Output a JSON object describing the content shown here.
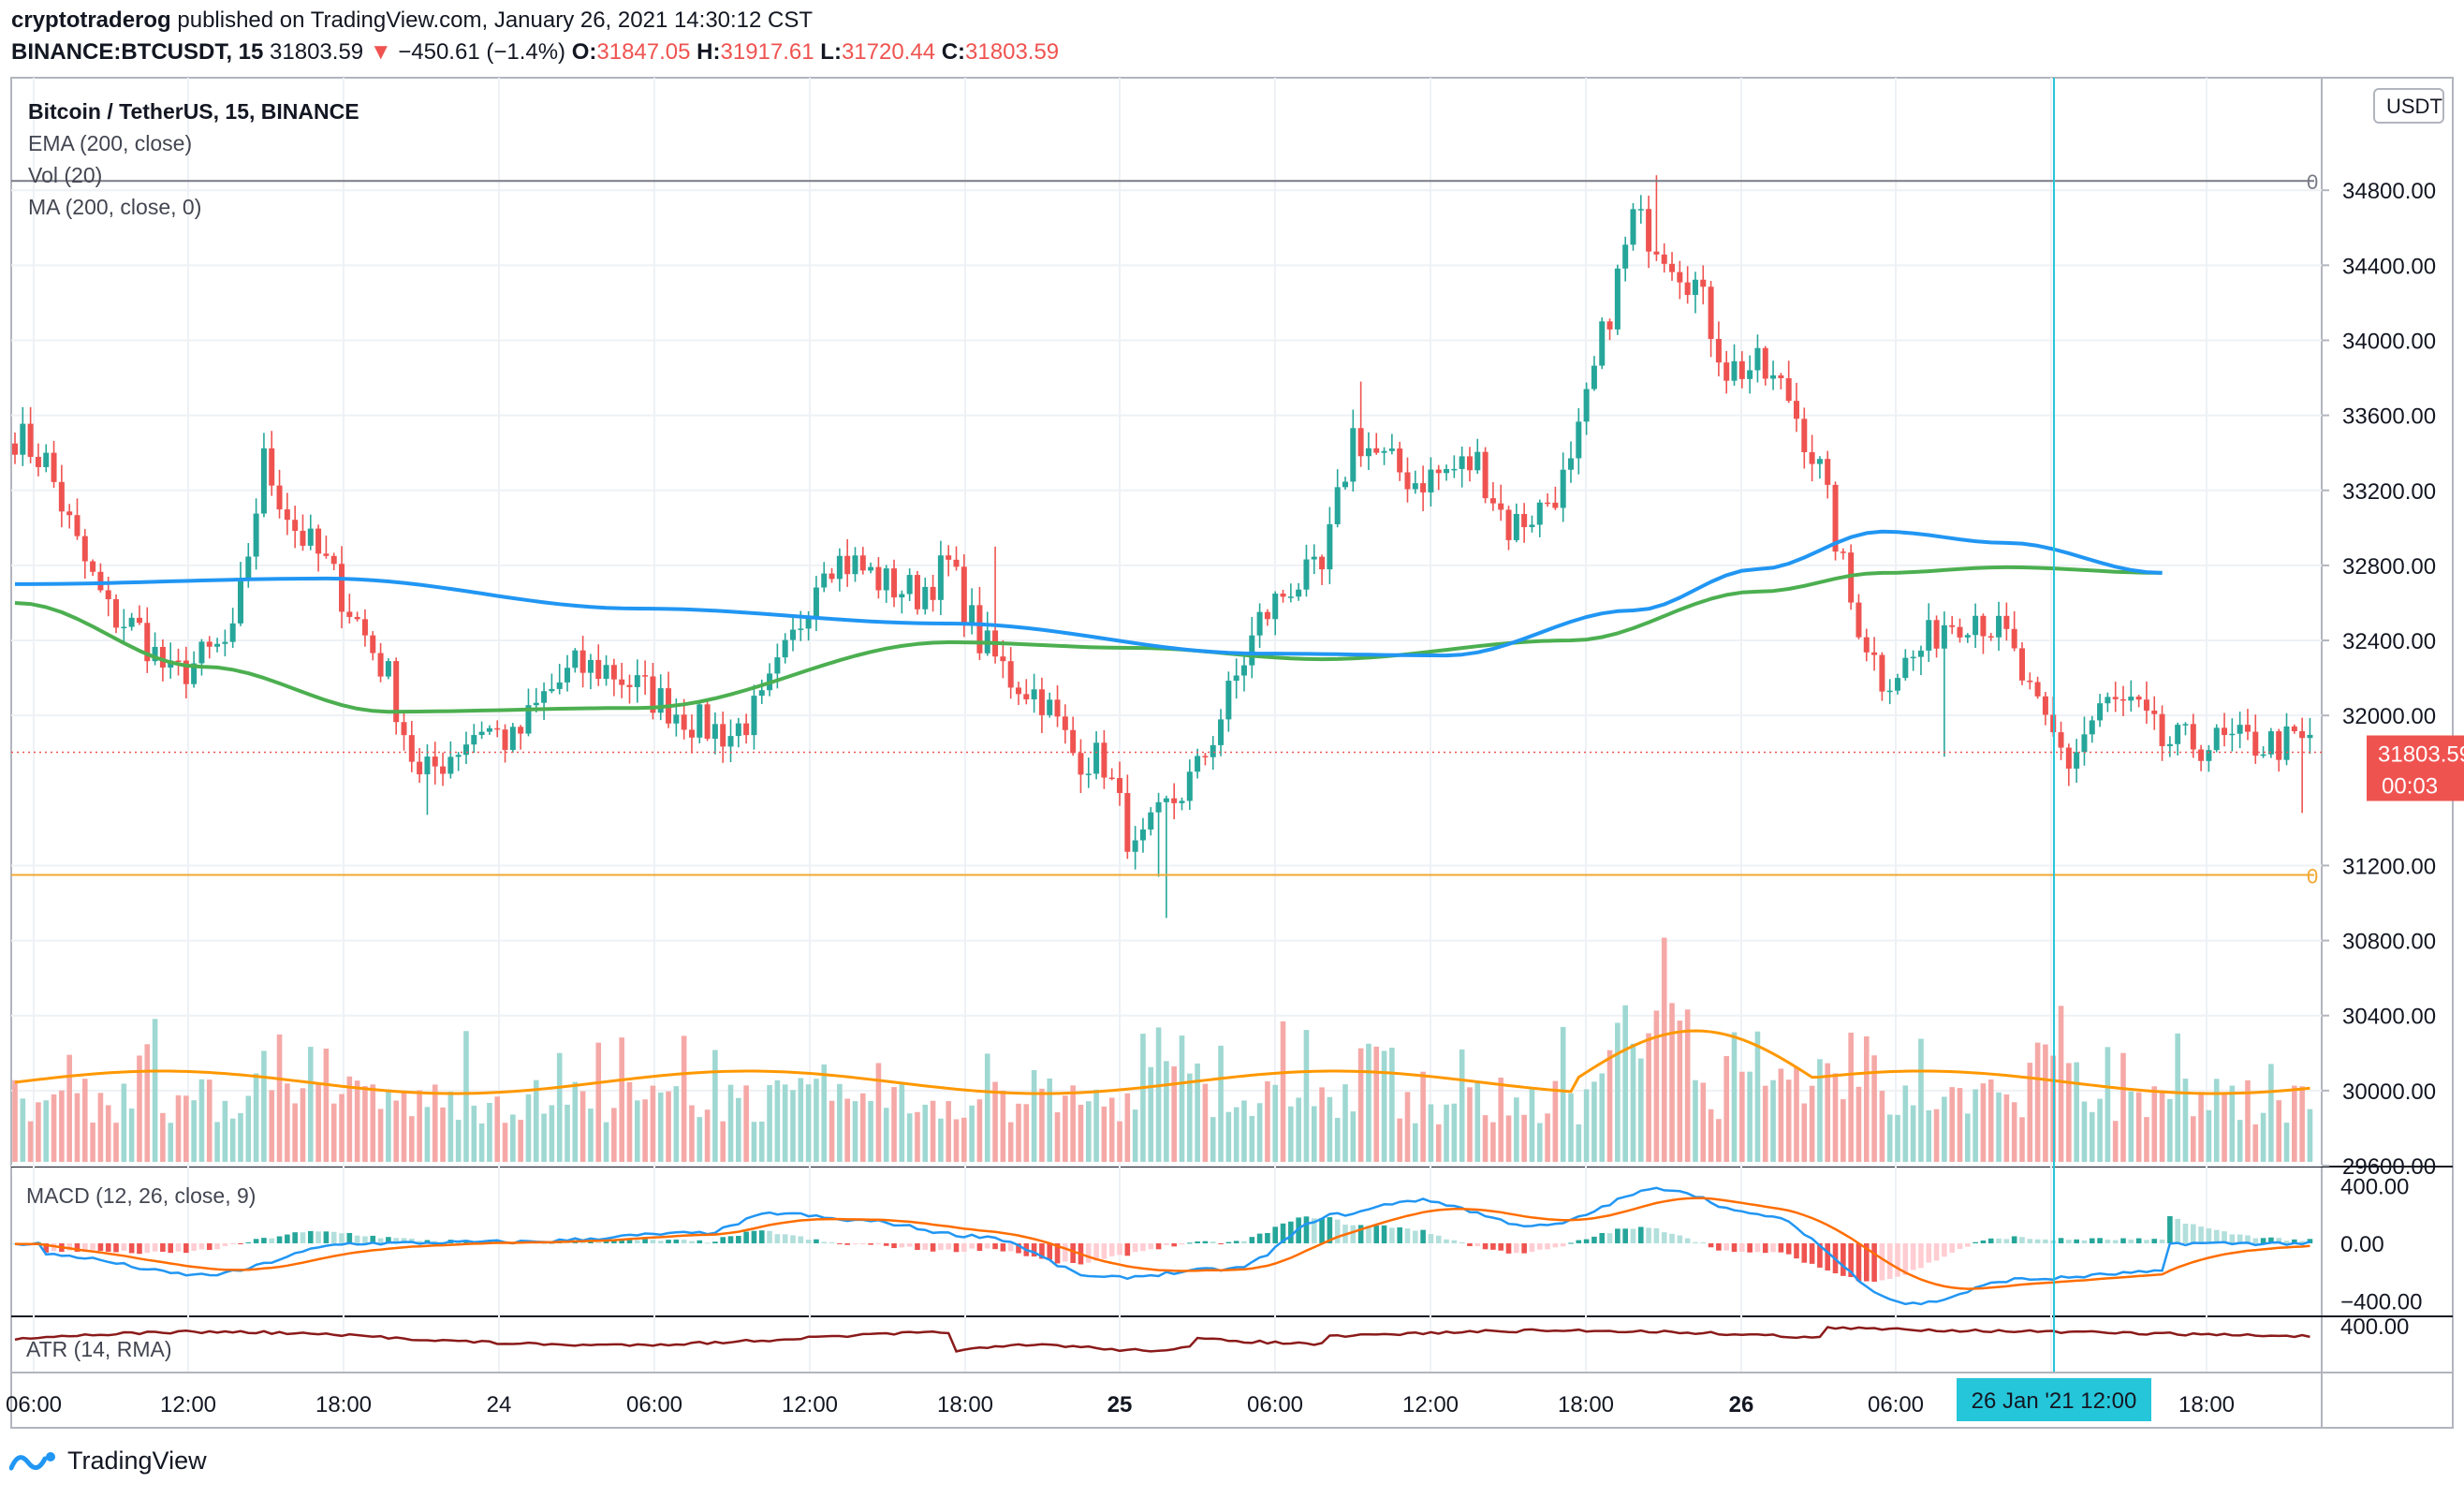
{
  "header": {
    "author": "cryptotraderog",
    "published_text": "published on TradingView.com, January 26, 2021 14:30:12 CST",
    "symbol": "BINANCE:BTCUSDT, 15",
    "last": "31803.59",
    "change": "−450.61 (−1.4%)",
    "o_label": "O:",
    "o_value": "31847.05",
    "h_label": "H:",
    "h_value": "31917.61",
    "l_label": "L:",
    "l_value": "31720.44",
    "c_label": "C:",
    "c_value": "31803.59"
  },
  "legend": {
    "title": "Bitcoin / TetherUS, 15, BINANCE",
    "ema": "EMA (200, close)",
    "vol": "Vol (20)",
    "ma": "MA (200, close, 0)",
    "macd": "MACD (12, 26, close, 9)",
    "atr": "ATR (14, RMA)"
  },
  "footer": {
    "brand": "TradingView"
  },
  "colors": {
    "up": "#26a69a",
    "down": "#ef5350",
    "ema": "#2196f3",
    "ma": "#4caf50",
    "vol_ma": "#ff9800",
    "macd": "#2196f3",
    "signal": "#ff6d00",
    "atr": "#8b1a1a",
    "hline": "#f0a830",
    "cursor": "#26c6da",
    "price_tag": "#ef5350"
  },
  "chart_data": {
    "type": "candlestick",
    "y_unit": "USDT",
    "y_range": [
      29600,
      35400
    ],
    "y_ticks": [
      "34800.00",
      "34400.00",
      "34000.00",
      "33600.00",
      "33200.00",
      "32800.00",
      "32400.00",
      "32000.00",
      "31200.00",
      "30800.00",
      "30400.00",
      "30000.00",
      "29600.00"
    ],
    "x_ticks": [
      "06:00",
      "12:00",
      "18:00",
      "24",
      "06:00",
      "12:00",
      "18:00",
      "25",
      "06:00",
      "12:00",
      "18:00",
      "26",
      "06:00",
      "18:00"
    ],
    "x_crosshair_label": "26 Jan '21   12:00",
    "last_price_label": "31803.59",
    "countdown_label": "00:03",
    "price_anchors_note": "hourly approximations",
    "price_anchors": [
      [
        0,
        33500
      ],
      [
        1,
        33350
      ],
      [
        2,
        32900
      ],
      [
        3,
        32550
      ],
      [
        4,
        32450
      ],
      [
        5,
        32200
      ],
      [
        6,
        32300
      ],
      [
        7,
        32400
      ],
      [
        8,
        33350
      ],
      [
        9,
        33000
      ],
      [
        10,
        32800
      ],
      [
        11,
        32500
      ],
      [
        12,
        32200
      ],
      [
        13,
        31650
      ],
      [
        14,
        31800
      ],
      [
        15,
        31950
      ],
      [
        16,
        31850
      ],
      [
        17,
        32100
      ],
      [
        18,
        32250
      ],
      [
        19,
        32250
      ],
      [
        20,
        32150
      ],
      [
        21,
        32050
      ],
      [
        22,
        31950
      ],
      [
        23,
        31900
      ],
      [
        24,
        32050
      ],
      [
        25,
        32400
      ],
      [
        26,
        32850
      ],
      [
        27,
        32800
      ],
      [
        28,
        32700
      ],
      [
        29,
        32650
      ],
      [
        30,
        32800
      ],
      [
        31,
        32400
      ],
      [
        32,
        32200
      ],
      [
        33,
        32100
      ],
      [
        34,
        31800
      ],
      [
        35,
        31750
      ],
      [
        36,
        31250
      ],
      [
        37,
        31500
      ],
      [
        38,
        31700
      ],
      [
        39,
        32100
      ],
      [
        40,
        32500
      ],
      [
        41,
        32700
      ],
      [
        42,
        32750
      ],
      [
        43,
        33500
      ],
      [
        44,
        33350
      ],
      [
        45,
        33250
      ],
      [
        46,
        33300
      ],
      [
        47,
        33350
      ],
      [
        48,
        33000
      ],
      [
        49,
        33100
      ],
      [
        50,
        33300
      ],
      [
        51,
        34000
      ],
      [
        52,
        34650
      ],
      [
        53,
        34500
      ],
      [
        54,
        34300
      ],
      [
        55,
        33850
      ],
      [
        56,
        33850
      ],
      [
        57,
        33700
      ],
      [
        58,
        33300
      ],
      [
        59,
        32600
      ],
      [
        60,
        32200
      ],
      [
        61,
        32300
      ],
      [
        62,
        32500
      ],
      [
        63,
        32550
      ],
      [
        64,
        32400
      ],
      [
        65,
        32000
      ],
      [
        66,
        31750
      ],
      [
        67,
        32050
      ],
      [
        68,
        32050
      ],
      [
        69,
        31850
      ]
    ],
    "ema_200": [
      [
        0,
        32700
      ],
      [
        10,
        32730
      ],
      [
        20,
        32570
      ],
      [
        30,
        32490
      ],
      [
        40,
        32330
      ],
      [
        46,
        32320
      ],
      [
        52,
        32560
      ],
      [
        56,
        32780
      ],
      [
        60,
        32980
      ],
      [
        64,
        32920
      ],
      [
        69,
        32760
      ]
    ],
    "ma_200": [
      [
        0,
        32600
      ],
      [
        6,
        32260
      ],
      [
        12,
        32020
      ],
      [
        20,
        32040
      ],
      [
        30,
        32390
      ],
      [
        36,
        32360
      ],
      [
        42,
        32300
      ],
      [
        50,
        32400
      ],
      [
        56,
        32660
      ],
      [
        60,
        32760
      ],
      [
        64,
        32790
      ],
      [
        69,
        32760
      ]
    ],
    "horizontal_lines": [
      {
        "price": 34850,
        "label": "0"
      },
      {
        "price": 31150,
        "label": "0"
      }
    ],
    "macd": {
      "range": [
        -450,
        450
      ],
      "ticks": [
        "400.00",
        "0.00",
        "−400.00"
      ]
    },
    "atr": {
      "ticks": [
        "400.00"
      ]
    }
  }
}
